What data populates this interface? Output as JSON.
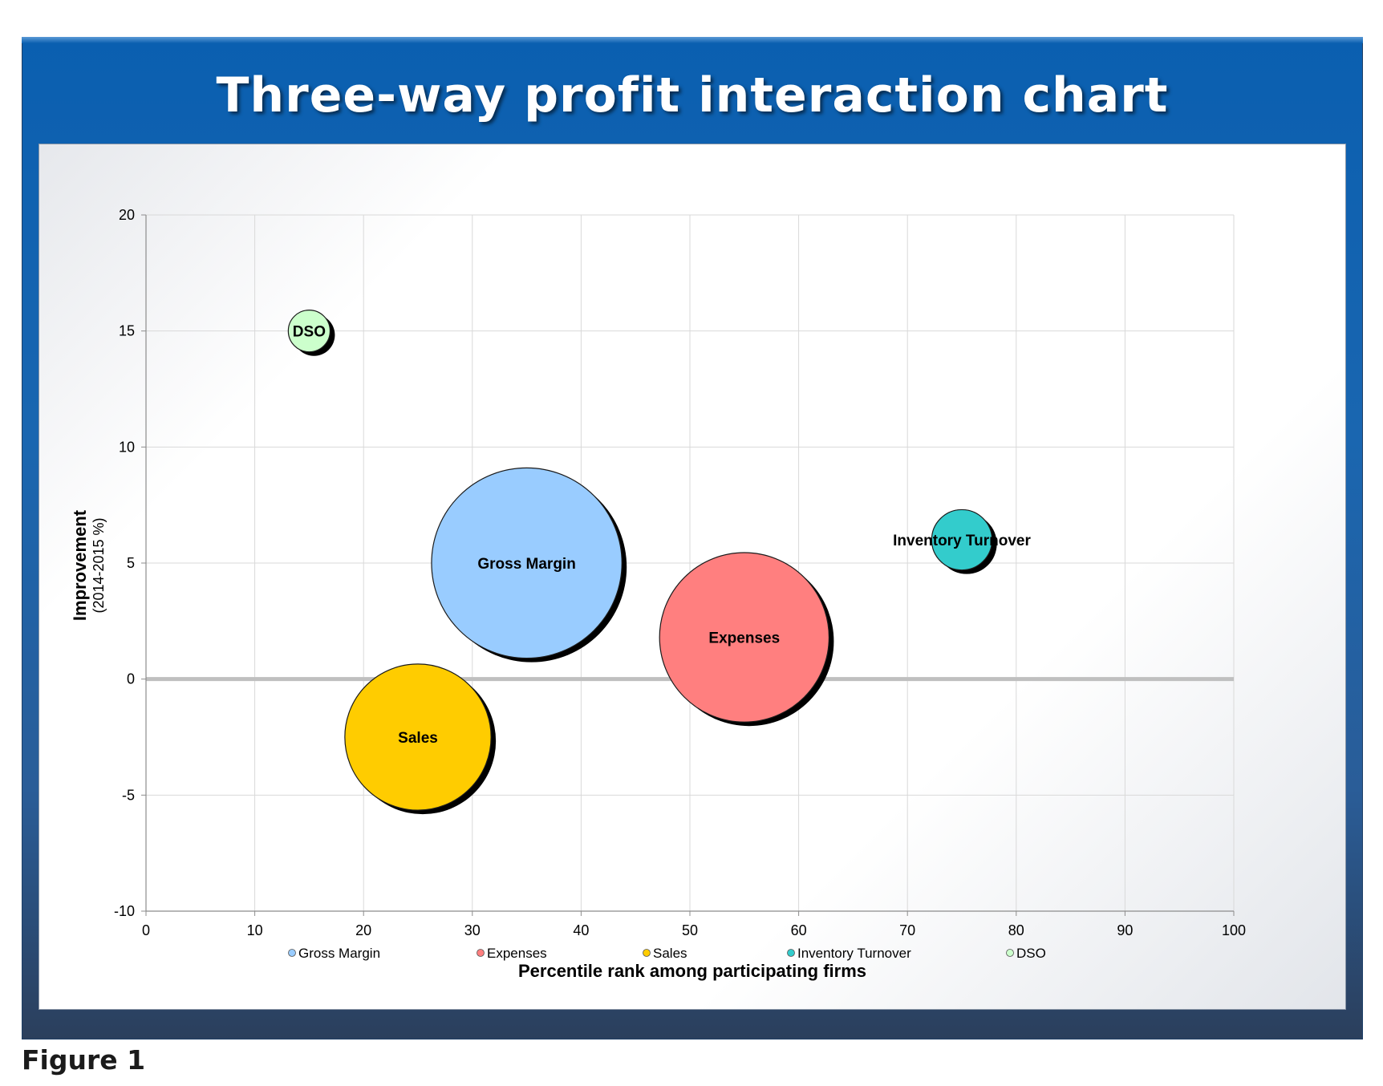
{
  "header": {
    "title": "Three-way profit interaction chart"
  },
  "caption": "Figure 1",
  "chart_data": {
    "type": "bubble",
    "title": "Three-way profit interaction chart",
    "xlabel": "Percentile rank among participating firms",
    "ylabel": "Improvement",
    "ylabel_sub": "(2014-2015 %)",
    "xlim": [
      0,
      100
    ],
    "ylim": [
      -10,
      20
    ],
    "x_ticks": [
      0,
      10,
      20,
      30,
      40,
      50,
      60,
      70,
      80,
      90,
      100
    ],
    "y_ticks": [
      -10,
      -5,
      0,
      5,
      10,
      15,
      20
    ],
    "grid": true,
    "legend_position": "bottom",
    "series": [
      {
        "name": "Gross Margin",
        "x": 35,
        "y": 5,
        "size": 8.2,
        "color": "#99ccff"
      },
      {
        "name": "Expenses",
        "x": 55,
        "y": 1.8,
        "size": 7.3,
        "color": "#ff7f7f"
      },
      {
        "name": "Sales",
        "x": 25,
        "y": -2.5,
        "size": 6.3,
        "color": "#ffcc00"
      },
      {
        "name": "Inventory Turnover",
        "x": 75,
        "y": 6,
        "size": 2.6,
        "color": "#33cccc"
      },
      {
        "name": "DSO",
        "x": 15,
        "y": 15,
        "size": 1.8,
        "color": "#ccffcc"
      }
    ]
  }
}
